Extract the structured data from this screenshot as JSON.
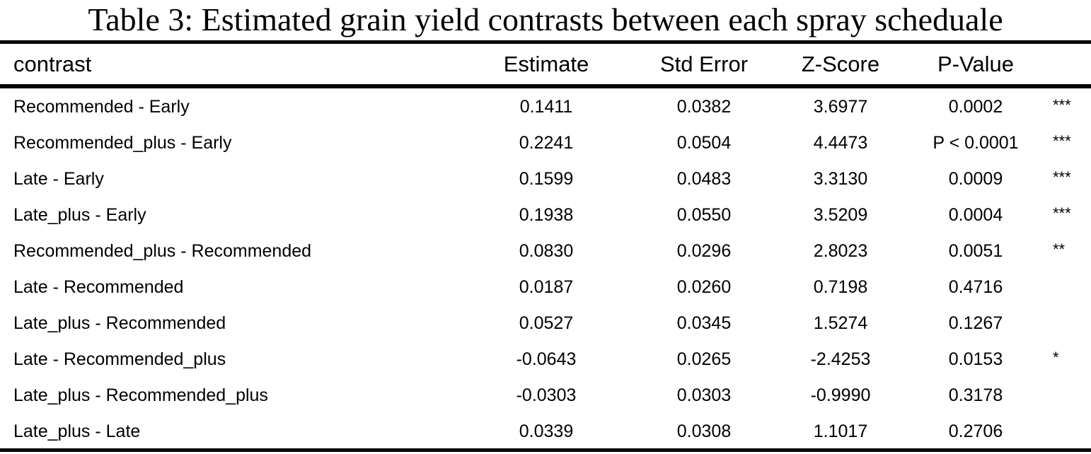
{
  "title": "Table 3: Estimated grain yield contrasts between each spray scheduale",
  "columns": {
    "contrast": "contrast",
    "estimate": "Estimate",
    "std_error": "Std Error",
    "z_score": "Z-Score",
    "p_value": "P-Value"
  },
  "rows": [
    {
      "contrast": "Recommended - Early",
      "estimate": "0.1411",
      "std_error": "0.0382",
      "z_score": "3.6977",
      "p_value": "0.0002",
      "sig": "***"
    },
    {
      "contrast": "Recommended_plus - Early",
      "estimate": "0.2241",
      "std_error": "0.0504",
      "z_score": "4.4473",
      "p_value": "P < 0.0001",
      "sig": "***"
    },
    {
      "contrast": "Late - Early",
      "estimate": "0.1599",
      "std_error": "0.0483",
      "z_score": "3.3130",
      "p_value": "0.0009",
      "sig": "***"
    },
    {
      "contrast": "Late_plus - Early",
      "estimate": "0.1938",
      "std_error": "0.0550",
      "z_score": "3.5209",
      "p_value": "0.0004",
      "sig": "***"
    },
    {
      "contrast": "Recommended_plus - Recommended",
      "estimate": "0.0830",
      "std_error": "0.0296",
      "z_score": "2.8023",
      "p_value": "0.0051",
      "sig": "**"
    },
    {
      "contrast": "Late - Recommended",
      "estimate": "0.0187",
      "std_error": "0.0260",
      "z_score": "0.7198",
      "p_value": "0.4716",
      "sig": ""
    },
    {
      "contrast": "Late_plus - Recommended",
      "estimate": "0.0527",
      "std_error": "0.0345",
      "z_score": "1.5274",
      "p_value": "0.1267",
      "sig": ""
    },
    {
      "contrast": "Late - Recommended_plus",
      "estimate": "-0.0643",
      "std_error": "0.0265",
      "z_score": "-2.4253",
      "p_value": "0.0153",
      "sig": "*"
    },
    {
      "contrast": "Late_plus - Recommended_plus",
      "estimate": "-0.0303",
      "std_error": "0.0303",
      "z_score": "-0.9990",
      "p_value": "0.3178",
      "sig": ""
    },
    {
      "contrast": "Late_plus - Late",
      "estimate": "0.0339",
      "std_error": "0.0308",
      "z_score": "1.1017",
      "p_value": "0.2706",
      "sig": ""
    }
  ]
}
